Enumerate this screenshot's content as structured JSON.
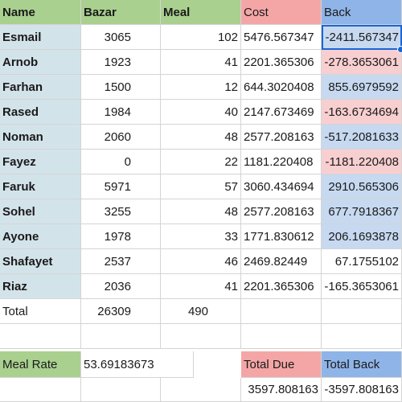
{
  "headers": [
    "Name",
    "Bazar",
    "Meal",
    "Cost",
    "Back"
  ],
  "rows": [
    {
      "name": "Esmail",
      "bazar": "3065",
      "meal": "102",
      "cost": "5476.567347",
      "back": "-2411.567347"
    },
    {
      "name": "Arnob",
      "bazar": "1923",
      "meal": "41",
      "cost": "2201.365306",
      "back": "-278.3653061"
    },
    {
      "name": "Farhan",
      "bazar": "1500",
      "meal": "12",
      "cost": "644.3020408",
      "back": "855.6979592"
    },
    {
      "name": "Rased",
      "bazar": "1984",
      "meal": "40",
      "cost": "2147.673469",
      "back": "-163.6734694"
    },
    {
      "name": "Noman",
      "bazar": "2060",
      "meal": "48",
      "cost": "2577.208163",
      "back": "-517.2081633"
    },
    {
      "name": "Fayez",
      "bazar": "0",
      "meal": "22",
      "cost": "1181.220408",
      "back": "-1181.220408"
    },
    {
      "name": "Faruk",
      "bazar": "5971",
      "meal": "57",
      "cost": "3060.434694",
      "back": "2910.565306"
    },
    {
      "name": "Sohel",
      "bazar": "3255",
      "meal": "48",
      "cost": "2577.208163",
      "back": "677.7918367"
    },
    {
      "name": "Ayone",
      "bazar": "1978",
      "meal": "33",
      "cost": "1771.830612",
      "back": "206.1693878"
    },
    {
      "name": "Shafayet",
      "bazar": "2537",
      "meal": "46",
      "cost": "2469.82449",
      "back": "67.1755102"
    },
    {
      "name": "Riaz",
      "bazar": "2036",
      "meal": "41",
      "cost": "2201.365306",
      "back": "-165.3653061"
    }
  ],
  "total": {
    "label": "Total",
    "bazar": "26309",
    "meal": "490"
  },
  "meal_rate": {
    "label": "Meal Rate",
    "value": "53.69183673"
  },
  "total_due": {
    "label": "Total Due",
    "value": "3597.808163"
  },
  "total_back": {
    "label": "Total Back",
    "value": "-3597.808163"
  },
  "colors": {
    "header_green": "#a9d08e",
    "header_red": "#f4a6a6",
    "header_blue": "#8fb4e8",
    "name_fill": "#d3e3ea",
    "negative_fill": "#f8cfd0",
    "positive_fill": "#c6d9f0",
    "selection": "#1a66d6"
  }
}
